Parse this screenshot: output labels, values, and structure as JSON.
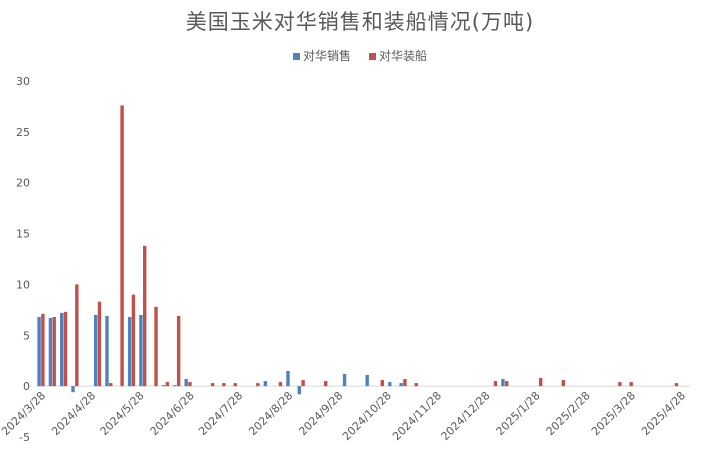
{
  "chart_data": {
    "type": "bar",
    "title": "美国玉米对华销售和装船情况(万吨)",
    "xlabel": "",
    "ylabel": "",
    "ylim": [
      -5,
      30
    ],
    "y_ticks": [
      -5,
      0,
      5,
      10,
      15,
      20,
      25,
      30
    ],
    "grid": false,
    "legend": "top",
    "x_tick_labels": [
      "2024/3/28",
      "2024/4/28",
      "2024/5/28",
      "2024/6/28",
      "2024/7/28",
      "2024/8/28",
      "2024/9/28",
      "2024/10/28",
      "2024/11/28",
      "2024/12/28",
      "2025/1/28",
      "2025/2/28",
      "2025/3/28",
      "2025/4/28"
    ],
    "categories": [
      "2024/3/28",
      "2024/4/4",
      "2024/4/11",
      "2024/4/18",
      "2024/4/25",
      "2024/5/2",
      "2024/5/9",
      "2024/5/16",
      "2024/5/23",
      "2024/5/30",
      "2024/6/6",
      "2024/6/13",
      "2024/6/20",
      "2024/6/27",
      "2024/7/4",
      "2024/7/11",
      "2024/7/18",
      "2024/7/25",
      "2024/8/1",
      "2024/8/8",
      "2024/8/15",
      "2024/8/22",
      "2024/8/29",
      "2024/9/5",
      "2024/9/12",
      "2024/9/19",
      "2024/9/26",
      "2024/10/3",
      "2024/10/10",
      "2024/10/17",
      "2024/10/24",
      "2024/10/31",
      "2024/11/7",
      "2024/11/14",
      "2024/11/21",
      "2024/11/28",
      "2024/12/5",
      "2024/12/12",
      "2024/12/19",
      "2024/12/26",
      "2025/1/2",
      "2025/1/9",
      "2025/1/16",
      "2025/1/23",
      "2025/1/30",
      "2025/2/6",
      "2025/2/13",
      "2025/2/20",
      "2025/2/27",
      "2025/3/6",
      "2025/3/13",
      "2025/3/20",
      "2025/3/27",
      "2025/4/3",
      "2025/4/10",
      "2025/4/17",
      "2025/4/24"
    ],
    "series": [
      {
        "name": "对华销售",
        "color": "#4f81bd",
        "values": [
          6.8,
          6.7,
          7.2,
          -0.6,
          0,
          7.0,
          6.9,
          0,
          6.8,
          7.0,
          0,
          0.1,
          0.1,
          0.7,
          0,
          0,
          0,
          0,
          0,
          0,
          0.5,
          0,
          1.5,
          -0.8,
          0,
          0,
          0,
          1.2,
          0,
          1.1,
          0,
          0.4,
          0.3,
          0,
          0,
          0,
          0,
          0,
          0,
          0,
          0,
          0.7,
          0,
          0,
          0,
          0,
          0,
          0,
          0,
          0,
          0,
          0,
          0,
          0,
          0,
          0,
          0
        ]
      },
      {
        "name": "对华装船",
        "color": "#c0504d",
        "values": [
          7.1,
          6.8,
          7.3,
          10.0,
          0,
          8.3,
          0.3,
          27.6,
          9.0,
          13.8,
          7.8,
          0.4,
          6.9,
          0.4,
          0,
          0.3,
          0.3,
          0.3,
          0,
          0.3,
          0,
          0.4,
          0,
          0.6,
          0,
          0.5,
          0,
          0,
          0,
          0,
          0.6,
          0,
          0.7,
          0.3,
          0,
          0,
          0,
          0,
          0,
          0,
          0.5,
          0.5,
          0,
          0,
          0.8,
          0,
          0.6,
          0,
          0,
          0,
          0,
          0.4,
          0.4,
          0,
          0,
          0,
          0.3
        ]
      }
    ]
  }
}
